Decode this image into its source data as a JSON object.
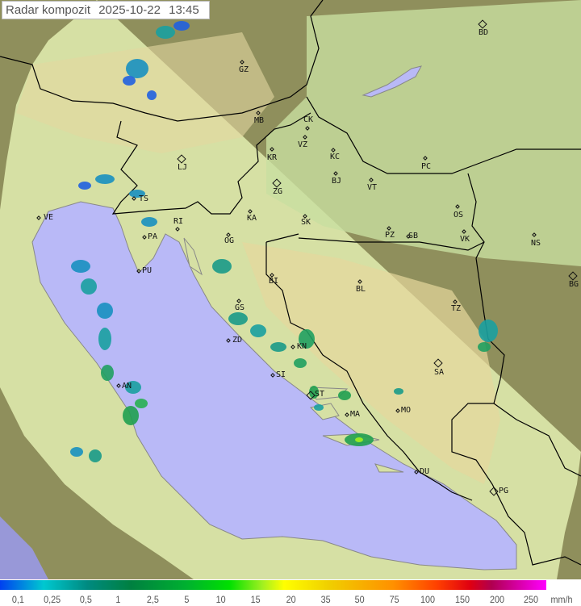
{
  "header": {
    "title": "Radar kompozit",
    "date": "2025-10-22",
    "time": "13:45"
  },
  "colors": {
    "sea": "#b9b9f7",
    "land": "#d9e3a8",
    "outside_coverage": "#8a8a55",
    "border": "#000000"
  },
  "cities": [
    "GZ",
    "BD",
    "MB",
    "CK",
    "VZ",
    "KR",
    "KC",
    "PC",
    "LJ",
    "ZG",
    "BJ",
    "VT",
    "TS",
    "VE",
    "RI",
    "KA",
    "SK",
    "OS",
    "PA",
    "OG",
    "PZ",
    "SB",
    "VK",
    "NS",
    "PU",
    "BG",
    "BI",
    "BL",
    "TZ",
    "GS",
    "ZD",
    "KN",
    "SA",
    "SI",
    "AN",
    "ST",
    "MA",
    "MO",
    "DU",
    "PG"
  ],
  "legend": {
    "unit": "mm/h",
    "ticks": [
      "0,1",
      "0,25",
      "0,5",
      "1",
      "2,5",
      "5",
      "10",
      "15",
      "20",
      "35",
      "50",
      "75",
      "100",
      "150",
      "200",
      "250"
    ]
  }
}
